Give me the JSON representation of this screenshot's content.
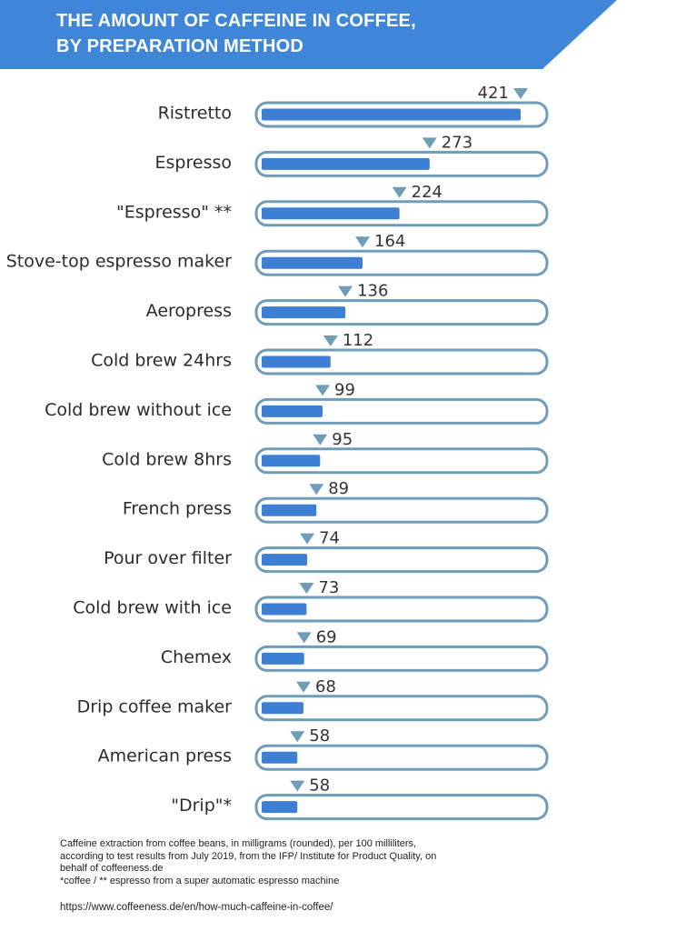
{
  "header": {
    "title_line1": "THE AMOUNT OF CAFFEINE IN COFFEE,",
    "title_line2": "BY PREPARATION METHOD",
    "background_color": "#3f86d9"
  },
  "colors": {
    "bar_fill": "#3d7fd3",
    "track_stroke": "#6f9db8",
    "marker": "#6f9db8"
  },
  "chart_data": {
    "type": "bar",
    "orientation": "horizontal",
    "title": "THE AMOUNT OF CAFFEINE IN COFFEE, BY PREPARATION METHOD",
    "categories": [
      "Ristretto",
      "Espresso",
      "\"Espresso\" **",
      "Stove-top espresso maker",
      "Aeropress",
      "Cold brew 24hrs",
      "Cold brew without ice",
      "Cold brew 8hrs",
      "French press",
      "Pour over filter",
      "Cold brew with ice",
      "Chemex",
      "Drip coffee maker",
      "American press",
      "\"Drip\"*"
    ],
    "values": [
      421,
      273,
      224,
      164,
      136,
      112,
      99,
      95,
      89,
      74,
      73,
      69,
      68,
      58,
      58
    ],
    "value_labels": [
      "421",
      "273",
      "224",
      "164",
      "136",
      "112",
      "99",
      "95",
      "89",
      "74",
      "73",
      "69",
      "68",
      "58",
      "58"
    ],
    "xlim": [
      0,
      465
    ],
    "grid": false,
    "legend": "none"
  },
  "footnote": {
    "lines": [
      "Caffeine extraction from coffee beans, in milligrams (rounded), per 100 milliliters, according to test results from July 2019, from the IFP/ Institute for Product Quality, on behalf of coffeeness.de",
      "*coffee / ** espresso from a super automatic espresso machine"
    ],
    "url": "https://www.coffeeness.de/en/how-much-caffeine-in-coffee/"
  }
}
